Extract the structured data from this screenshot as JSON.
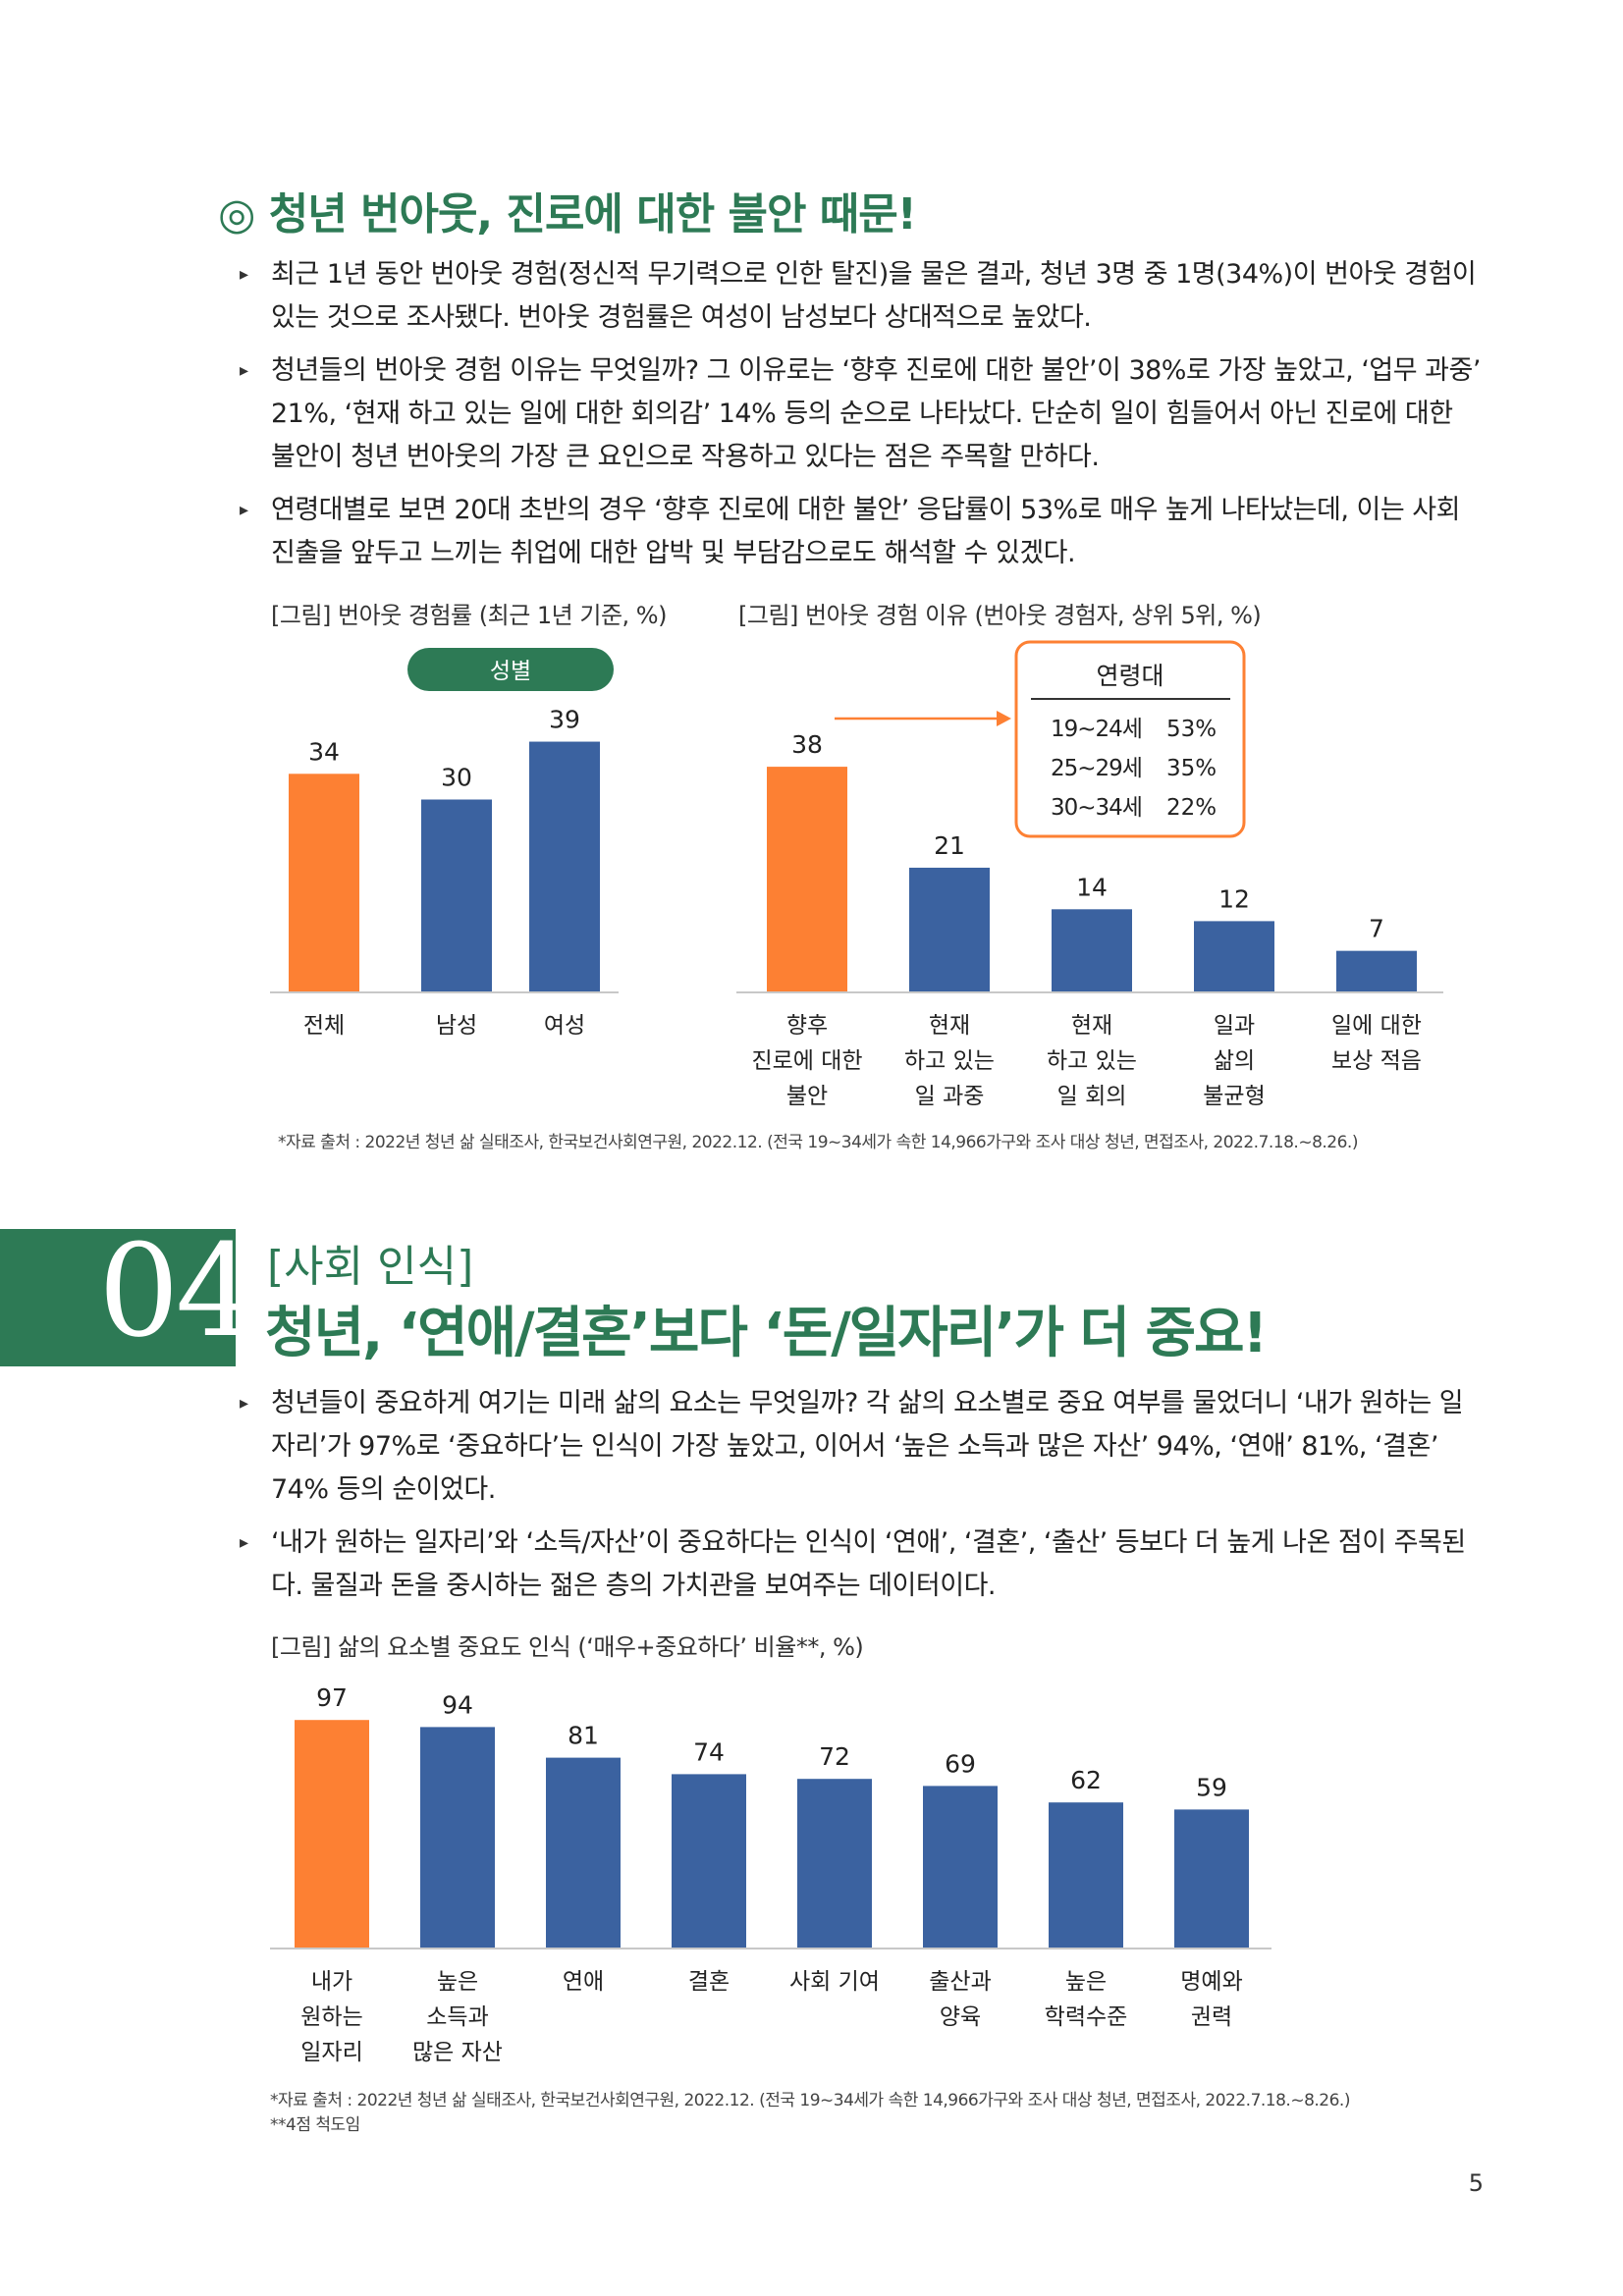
{
  "section3": {
    "title": "◎ 청년 번아웃, 진로에 대한 불안 때문!",
    "bullets": [
      "최근 1년 동안 번아웃 경험(정신적 무기력으로 인한 탈진)을 물은 결과, 청년 3명 중 1명(34%)이 번아웃 경험이 있는 것으로 조사됐다. 번아웃 경험률은 여성이 남성보다 상대적으로 높았다.",
      "청년들의 번아웃 경험 이유는 무엇일까? 그 이유로는 ‘향후 진로에 대한 불안’이 38%로 가장 높았고, ‘업무 과중’ 21%, ‘현재 하고 있는 일에 대한 회의감’ 14% 등의 순으로 나타났다. 단순히 일이 힘들어서 아닌 진로에 대한 불안이 청년 번아웃의 가장 큰 요인으로 작용하고 있다는 점은 주목할 만하다.",
      "연령대별로 보면 20대 초반의 경우 ‘향후 진로에 대한 불안’ 응답률이 53%로 매우 높게 나타났는데, 이는 사회진출을 앞두고 느끼는 취업에 대한 압박 및 부담감으로도 해석할 수 있겠다."
    ],
    "chart1_caption": "[그림] 번아웃 경험률 (최근 1년 기준, %)",
    "chart2_caption": "[그림] 번아웃 경험 이유 (번아웃 경험자, 상위 5위, %)",
    "gender_badge": "성별",
    "age_box": {
      "title": "연령대",
      "rows": [
        {
          "age": "19~24세",
          "pct": "53%"
        },
        {
          "age": "25~29세",
          "pct": "35%"
        },
        {
          "age": "30~34세",
          "pct": "22%"
        }
      ]
    },
    "source": "*자료 출처 : 2022년 청년 삶 실태조사, 한국보건사회연구원, 2022.12. (전국 19~34세가 속한 14,966가구와 조사 대상 청년, 면접조사, 2022.7.18.~8.26.)"
  },
  "section4": {
    "number": "04",
    "subtitle": "[사회 인식]",
    "title": "청년, ‘연애/결혼’보다 ‘돈/일자리’가 더 중요!",
    "bullets": [
      "청년들이 중요하게 여기는 미래 삶의 요소는 무엇일까? 각 삶의 요소별로 중요 여부를 물었더니 ‘내가 원하는 일자리’가 97%로 ‘중요하다’는 인식이 가장 높았고, 이어서 ‘높은 소득과 많은 자산’ 94%, ‘연애’ 81%, ‘결혼’ 74% 등의 순이었다.",
      "‘내가 원하는 일자리’와 ‘소득/자산’이 중요하다는 인식이 ‘연애’, ‘결혼’, ‘출산’ 등보다 더 높게 나온 점이 주목된다. 물질과 돈을 중시하는 젊은 층의 가치관을 보여주는 데이터이다."
    ],
    "chart_caption": "[그림] 삶의 요소별 중요도 인식 (‘매우+중요하다’ 비율**, %)",
    "source1": "*자료 출처 : 2022년 청년 삶 실태조사, 한국보건사회연구원, 2022.12. (전국 19~34세가 속한 14,966가구와 조사 대상 청년, 면접조사, 2022.7.18.~8.26.)",
    "source2": "**4점 척도임"
  },
  "page_number": "5",
  "colors": {
    "orange": "#fd8033",
    "blue": "#3b62a0",
    "green": "#2d7a55"
  },
  "chart_data": [
    {
      "type": "bar",
      "categories": [
        "전체",
        "남성",
        "여성"
      ],
      "values": [
        34,
        30,
        39
      ],
      "highlight": [
        0
      ]
    },
    {
      "type": "bar",
      "categories": [
        [
          "향후",
          "진로에 대한",
          "불안"
        ],
        [
          "현재",
          "하고 있는",
          "일 과중"
        ],
        [
          "현재",
          "하고 있는",
          "일 회의"
        ],
        [
          "일과",
          "삶의",
          "불균형"
        ],
        [
          "일에 대한",
          "보상 적음"
        ]
      ],
      "values": [
        38,
        21,
        14,
        12,
        7
      ],
      "highlight": [
        0
      ]
    },
    {
      "type": "bar",
      "categories": [
        [
          "내가",
          "원하는",
          "일자리"
        ],
        [
          "높은",
          "소득과",
          "많은 자산"
        ],
        [
          "연애"
        ],
        [
          "결혼"
        ],
        [
          "사회 기여"
        ],
        [
          "출산과",
          "양육"
        ],
        [
          "높은",
          "학력수준"
        ],
        [
          "명예와",
          "권력"
        ]
      ],
      "values": [
        97,
        94,
        81,
        74,
        72,
        69,
        62,
        59
      ],
      "highlight": [
        0
      ]
    }
  ]
}
